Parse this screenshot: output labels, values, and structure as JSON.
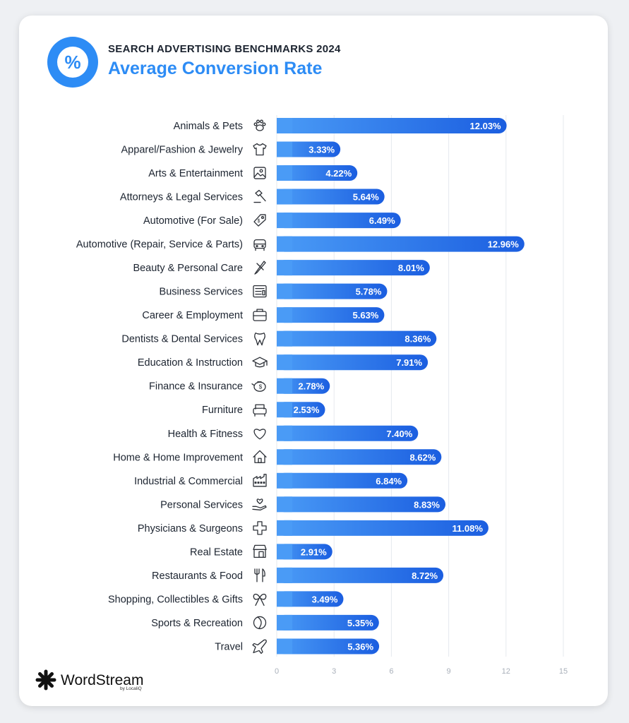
{
  "header": {
    "badge_symbol": "%",
    "subtitle": "SEARCH ADVERTISING BENCHMARKS 2024",
    "title": "Average Conversion Rate"
  },
  "branding": {
    "name": "WordStream",
    "sub": "by LocaliQ"
  },
  "colors": {
    "accent": "#2d8cf5",
    "bar_dark": "#1b5ee0",
    "bar_light": "#4a9bf6",
    "text": "#1c2430"
  },
  "chart_data": {
    "type": "bar",
    "orientation": "horizontal",
    "title": "Average Conversion Rate",
    "xlabel": "",
    "ylabel": "",
    "xlim": [
      0,
      15
    ],
    "xticks": [
      0,
      3,
      6,
      9,
      12,
      15
    ],
    "grid": true,
    "value_suffix": "%",
    "categories": [
      "Animals & Pets",
      "Apparel/Fashion & Jewelry",
      "Arts & Entertainment",
      "Attorneys & Legal Services",
      "Automotive (For Sale)",
      "Automotive (Repair, Service & Parts)",
      "Beauty & Personal Care",
      "Business Services",
      "Career & Employment",
      "Dentists & Dental Services",
      "Education & Instruction",
      "Finance & Insurance",
      "Furniture",
      "Health & Fitness",
      "Home & Home Improvement",
      "Industrial & Commercial",
      "Personal Services",
      "Physicians & Surgeons",
      "Real Estate",
      "Restaurants & Food",
      "Shopping, Collectibles & Gifts",
      "Sports & Recreation",
      "Travel"
    ],
    "values": [
      12.03,
      3.33,
      4.22,
      5.64,
      6.49,
      12.96,
      8.01,
      5.78,
      5.63,
      8.36,
      7.91,
      2.78,
      2.53,
      7.4,
      8.62,
      6.84,
      8.83,
      11.08,
      2.91,
      8.72,
      3.49,
      5.35,
      5.36
    ],
    "labels": [
      "12.03%",
      "3.33%",
      "4.22%",
      "5.64%",
      "6.49%",
      "12.96%",
      "8.01%",
      "5.78%",
      "5.63%",
      "8.36%",
      "7.91%",
      "2.78%",
      "2.53%",
      "7.40%",
      "8.62%",
      "6.84%",
      "8.83%",
      "11.08%",
      "2.91%",
      "8.72%",
      "3.49%",
      "5.35%",
      "5.36%"
    ],
    "icons": [
      "paw-icon",
      "tshirt-icon",
      "picture-icon",
      "gavel-icon",
      "tag-icon",
      "car-icon",
      "brush-icon",
      "document-icon",
      "briefcase-icon",
      "tooth-icon",
      "graduation-cap-icon",
      "piggy-bank-icon",
      "armchair-icon",
      "heart-icon",
      "house-icon",
      "factory-icon",
      "hand-heart-icon",
      "medical-cross-icon",
      "storefront-icon",
      "fork-knife-icon",
      "gift-bow-icon",
      "ball-icon",
      "airplane-icon"
    ]
  }
}
